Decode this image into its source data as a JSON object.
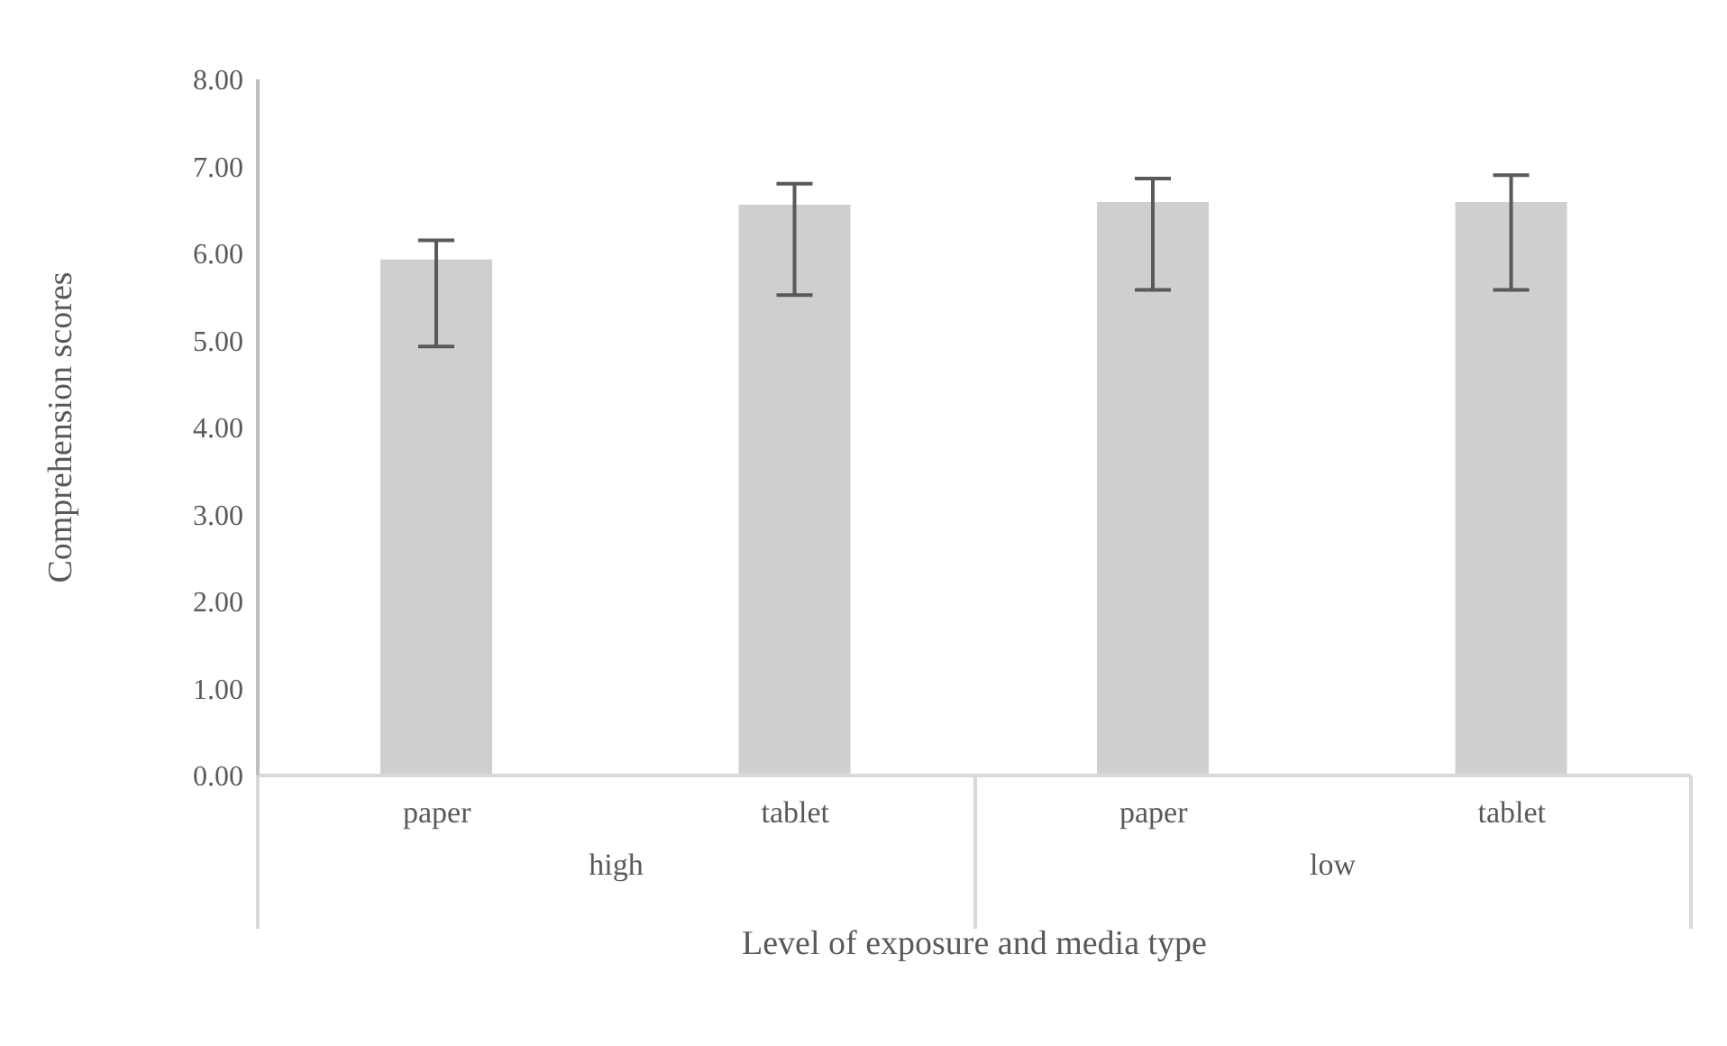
{
  "chart_data": {
    "type": "bar",
    "ylabel": "Comprehension scores",
    "xlabel": "Level of exposure and media type",
    "categories": [
      "paper",
      "tablet",
      "paper",
      "tablet"
    ],
    "values": [
      5.93,
      6.56,
      6.59,
      6.59
    ],
    "errors": [
      [
        4.93,
        6.15
      ],
      [
        5.52,
        6.8
      ],
      [
        5.58,
        6.86
      ],
      [
        5.58,
        6.9
      ]
    ],
    "color": "#d0cecf",
    "annotations": [
      "high",
      "low"
    ],
    "ylim": [
      0,
      8
    ],
    "yticks": [
      {
        "value": 0,
        "label": "0.00"
      },
      {
        "value": 1,
        "label": "1.00"
      },
      {
        "value": 2,
        "label": "2.00"
      },
      {
        "value": 3,
        "label": "3.00"
      },
      {
        "value": 4,
        "label": "4.00"
      },
      {
        "value": 5,
        "label": "5.00"
      },
      {
        "value": 6,
        "label": "6.00"
      },
      {
        "value": 7,
        "label": "7.00"
      },
      {
        "value": 8,
        "label": "8.00"
      }
    ]
  }
}
